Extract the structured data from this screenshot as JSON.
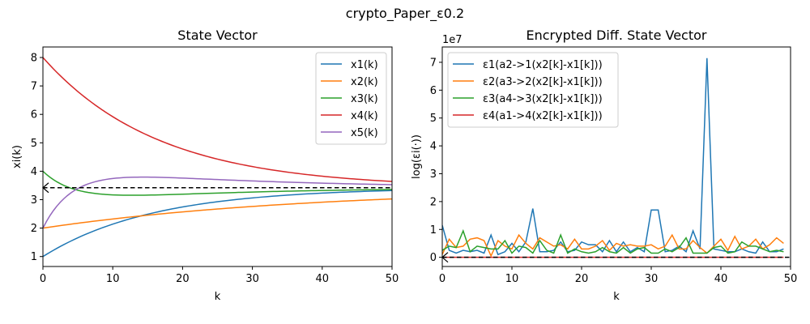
{
  "figure": {
    "title": "crypto_Paper_ε0.2"
  },
  "chart_data": [
    {
      "type": "line",
      "title": "State Vector",
      "xlabel": "k",
      "ylabel": "xi(k)",
      "xlim": [
        0,
        50
      ],
      "ylim": [
        0.65,
        8.37
      ],
      "xticks": [
        0,
        10,
        20,
        30,
        40,
        50
      ],
      "yticks": [
        1,
        2,
        3,
        4,
        5,
        6,
        7,
        8
      ],
      "grid": false,
      "legend_position": "top-right",
      "series": [
        {
          "name": "x1(k)",
          "color": "#1f77b4",
          "model": {
            "start": 1.0,
            "end": 3.42,
            "tau": 15.7
          },
          "x": [
            0,
            5,
            10,
            15,
            20,
            25,
            30,
            35,
            40,
            45,
            50
          ],
          "values": [
            1.0,
            1.65,
            2.15,
            2.5,
            2.74,
            2.92,
            3.04,
            3.13,
            3.2,
            3.25,
            3.28
          ]
        },
        {
          "name": "x2(k)",
          "color": "#ff7f0e",
          "model": {
            "start": 2.0,
            "end": 3.42,
            "tau": 39.0
          },
          "x": [
            0,
            5,
            10,
            15,
            20,
            25,
            30,
            35,
            40,
            45,
            50
          ],
          "values": [
            2.0,
            2.17,
            2.32,
            2.46,
            2.6,
            2.73,
            2.84,
            2.94,
            3.03,
            3.11,
            3.18
          ]
        },
        {
          "name": "x3(k)",
          "color": "#2ca02c",
          "model": {
            "start": 4.0,
            "end": 3.42,
            "tau": 5.0,
            "dip": 0.6,
            "dipTau": 22.0
          },
          "x": [
            0,
            5,
            10,
            15,
            20,
            25,
            30,
            35,
            40,
            45,
            50
          ],
          "values": [
            4.0,
            3.33,
            3.1,
            3.05,
            3.07,
            3.11,
            3.16,
            3.2,
            3.23,
            3.25,
            3.27
          ]
        },
        {
          "name": "x4(k)",
          "color": "#d62728",
          "model": {
            "start": 8.0,
            "end": 3.42,
            "tau": 16.5
          },
          "x": [
            0,
            5,
            10,
            15,
            20,
            25,
            30,
            35,
            40,
            45,
            50
          ],
          "values": [
            8.0,
            6.9,
            6.05,
            5.45,
            5.0,
            4.64,
            4.37,
            4.17,
            4.02,
            3.92,
            3.85
          ]
        },
        {
          "name": "x5(k)",
          "color": "#9467bd",
          "model": {
            "start": 2.0,
            "end": 3.42,
            "tau": 4.5,
            "hump": 0.8,
            "humpTau": 25.0
          },
          "x": [
            0,
            5,
            10,
            15,
            20,
            25,
            30,
            35,
            40,
            45,
            50
          ],
          "values": [
            2.0,
            3.2,
            3.52,
            3.6,
            3.62,
            3.59,
            3.55,
            3.51,
            3.48,
            3.46,
            3.45
          ]
        },
        {
          "name": "",
          "color": "#000000",
          "dashed": true,
          "x": [
            0,
            50
          ],
          "values": [
            3.42,
            3.42
          ]
        }
      ]
    },
    {
      "type": "line",
      "title": "Encrypted Diff. State Vector",
      "xlabel": "k",
      "ylabel": "log(εi(·))",
      "y_scale_label": "1e7",
      "xlim": [
        0,
        50
      ],
      "ylim": [
        -0.33,
        7.55
      ],
      "xticks": [
        0,
        10,
        20,
        30,
        40,
        50
      ],
      "yticks": [
        0,
        1,
        2,
        3,
        4,
        5,
        6,
        7
      ],
      "grid": false,
      "legend_position": "top-left",
      "series": [
        {
          "name": "ε1(a2->1(x2[k]-x1[k]))",
          "color": "#1f77b4",
          "values": [
            1.15,
            0.25,
            0.15,
            0.25,
            0.2,
            0.25,
            0.15,
            0.8,
            0.1,
            0.2,
            0.5,
            0.2,
            0.55,
            1.75,
            0.2,
            0.2,
            0.25,
            0.55,
            0.2,
            0.25,
            0.55,
            0.45,
            0.45,
            0.2,
            0.6,
            0.2,
            0.55,
            0.2,
            0.35,
            0.2,
            1.7,
            1.7,
            0.2,
            0.25,
            0.4,
            0.2,
            0.95,
            0.3,
            7.15,
            0.3,
            0.25,
            0.2,
            0.2,
            0.3,
            0.2,
            0.15,
            0.55,
            0.2,
            0.2,
            0.3
          ]
        },
        {
          "name": "ε2(a3->2(x2[k]-x1[k]))",
          "color": "#ff7f0e",
          "values": [
            0.1,
            0.65,
            0.35,
            0.4,
            0.65,
            0.7,
            0.6,
            0.05,
            0.6,
            0.4,
            0.3,
            0.8,
            0.5,
            0.3,
            0.7,
            0.55,
            0.4,
            0.45,
            0.3,
            0.65,
            0.3,
            0.3,
            0.4,
            0.6,
            0.25,
            0.5,
            0.4,
            0.45,
            0.4,
            0.4,
            0.45,
            0.3,
            0.4,
            0.8,
            0.3,
            0.3,
            0.6,
            0.35,
            0.15,
            0.4,
            0.65,
            0.25,
            0.75,
            0.3,
            0.4,
            0.65,
            0.3,
            0.45,
            0.7,
            0.5
          ]
        },
        {
          "name": "ε3(a4->3(x2[k]-x1[k]))",
          "color": "#2ca02c",
          "values": [
            0.25,
            0.4,
            0.35,
            0.95,
            0.2,
            0.4,
            0.35,
            0.3,
            0.3,
            0.6,
            0.15,
            0.4,
            0.35,
            0.15,
            0.6,
            0.25,
            0.15,
            0.8,
            0.15,
            0.3,
            0.2,
            0.15,
            0.2,
            0.35,
            0.2,
            0.15,
            0.35,
            0.15,
            0.3,
            0.35,
            0.15,
            0.15,
            0.3,
            0.2,
            0.35,
            0.7,
            0.15,
            0.15,
            0.15,
            0.35,
            0.4,
            0.15,
            0.2,
            0.55,
            0.4,
            0.4,
            0.3,
            0.2,
            0.25,
            0.2
          ]
        },
        {
          "name": "ε4(a1->4(x2[k]-x1[k]))",
          "color": "#d62728",
          "values": [
            0,
            0,
            0,
            0,
            0,
            0,
            0,
            0,
            0,
            0,
            0,
            0,
            0,
            0,
            0,
            0,
            0,
            0,
            0,
            0,
            0,
            0,
            0,
            0,
            0,
            0,
            0,
            0,
            0,
            0,
            0,
            0,
            0,
            0,
            0,
            0,
            0,
            0,
            0,
            0,
            0,
            0,
            0,
            0,
            0,
            0,
            0,
            0,
            0,
            0
          ]
        },
        {
          "name": "",
          "color": "#000000",
          "dashed": true,
          "x": [
            0,
            50
          ],
          "values": [
            0,
            0
          ]
        }
      ]
    }
  ]
}
